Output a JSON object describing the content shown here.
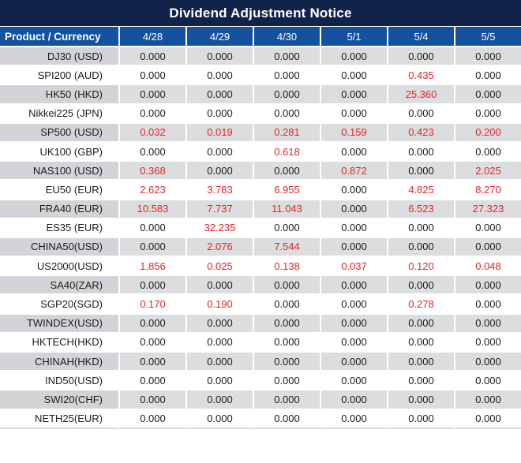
{
  "title": "Dividend Adjustment Notice",
  "colors": {
    "title_bg": "#12234a",
    "header_bg": "#1452a0",
    "stripe_row": "#dcddde",
    "stripe_product": "#d2d4d7",
    "negative_red": "#e2252b",
    "text_black": "#1b1b1b"
  },
  "table": {
    "product_header": "Product / Currency",
    "dates": [
      "4/28",
      "4/29",
      "4/30",
      "5/1",
      "5/4",
      "5/5"
    ],
    "rows": [
      {
        "product": "DJ30 (USD)",
        "values": [
          "0.000",
          "0.000",
          "0.000",
          "0.000",
          "0.000",
          "0.000"
        ]
      },
      {
        "product": "SPI200 (AUD)",
        "values": [
          "0.000",
          "0.000",
          "0.000",
          "0.000",
          "0.435",
          "0.000"
        ]
      },
      {
        "product": "HK50 (HKD)",
        "values": [
          "0.000",
          "0.000",
          "0.000",
          "0.000",
          "25.360",
          "0.000"
        ]
      },
      {
        "product": "Nikkei225 (JPN)",
        "values": [
          "0.000",
          "0.000",
          "0.000",
          "0.000",
          "0.000",
          "0.000"
        ]
      },
      {
        "product": "SP500 (USD)",
        "values": [
          "0.032",
          "0.019",
          "0.281",
          "0.159",
          "0.423",
          "0.200"
        ]
      },
      {
        "product": "UK100 (GBP)",
        "values": [
          "0.000",
          "0.000",
          "0.618",
          "0.000",
          "0.000",
          "0.000"
        ]
      },
      {
        "product": "NAS100 (USD)",
        "values": [
          "0.368",
          "0.000",
          "0.000",
          "0.872",
          "0.000",
          "2.025"
        ]
      },
      {
        "product": "EU50 (EUR)",
        "values": [
          "2.623",
          "3.783",
          "6.955",
          "0.000",
          "4.825",
          "8.270"
        ]
      },
      {
        "product": "FRA40 (EUR)",
        "values": [
          "10.583",
          "7.737",
          "11.043",
          "0.000",
          "6.523",
          "27.323"
        ]
      },
      {
        "product": "ES35 (EUR)",
        "values": [
          "0.000",
          "32.235",
          "0.000",
          "0.000",
          "0.000",
          "0.000"
        ]
      },
      {
        "product": "CHINA50(USD)",
        "values": [
          "0.000",
          "2.076",
          "7.544",
          "0.000",
          "0.000",
          "0.000"
        ]
      },
      {
        "product": "US2000(USD)",
        "values": [
          "1.856",
          "0.025",
          "0.138",
          "0.037",
          "0.120",
          "0.048"
        ]
      },
      {
        "product": "SA40(ZAR)",
        "values": [
          "0.000",
          "0.000",
          "0.000",
          "0.000",
          "0.000",
          "0.000"
        ]
      },
      {
        "product": "SGP20(SGD)",
        "values": [
          "0.170",
          "0.190",
          "0.000",
          "0.000",
          "0.278",
          "0.000"
        ]
      },
      {
        "product": "TWINDEX(USD)",
        "values": [
          "0.000",
          "0.000",
          "0.000",
          "0.000",
          "0.000",
          "0.000"
        ]
      },
      {
        "product": "HKTECH(HKD)",
        "values": [
          "0.000",
          "0.000",
          "0.000",
          "0.000",
          "0.000",
          "0.000"
        ]
      },
      {
        "product": "CHINAH(HKD)",
        "values": [
          "0.000",
          "0.000",
          "0.000",
          "0.000",
          "0.000",
          "0.000"
        ]
      },
      {
        "product": "IND50(USD)",
        "values": [
          "0.000",
          "0.000",
          "0.000",
          "0.000",
          "0.000",
          "0.000"
        ]
      },
      {
        "product": "SWI20(CHF)",
        "values": [
          "0.000",
          "0.000",
          "0.000",
          "0.000",
          "0.000",
          "0.000"
        ]
      },
      {
        "product": "NETH25(EUR)",
        "values": [
          "0.000",
          "0.000",
          "0.000",
          "0.000",
          "0.000",
          "0.000"
        ]
      }
    ]
  }
}
